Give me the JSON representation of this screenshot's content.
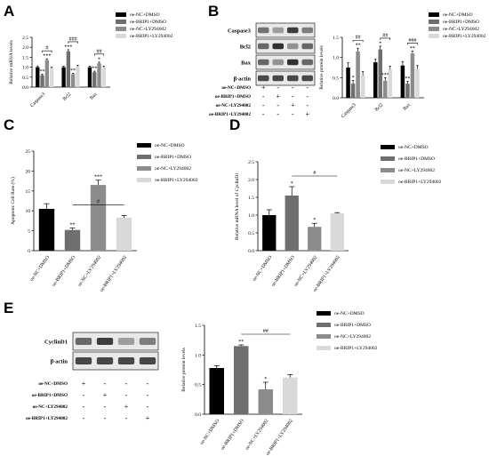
{
  "colors": {
    "oe-NC+DMSO": "#000000",
    "oe-BRIP1+DMSO": "#6e6e6e",
    "oe-NC+LY294002": "#8c8c8c",
    "oe-BRIP1+LY294002": "#d9d9d9"
  },
  "chart_data": [
    {
      "panel": "A",
      "type": "bar",
      "categories": [
        "Caspase3",
        "Bcl2",
        "Bax"
      ],
      "series": [
        {
          "name": "oe-NC+DMSO",
          "values": [
            1.0,
            1.0,
            1.0
          ],
          "errors": [
            0.06,
            0.05,
            0.05
          ]
        },
        {
          "name": "oe-BRIP1+DMSO",
          "values": [
            0.6,
            1.8,
            0.75
          ],
          "errors": [
            0.05,
            0.08,
            0.05
          ]
        },
        {
          "name": "oe-NC+LY294002",
          "values": [
            1.35,
            0.65,
            1.2
          ],
          "errors": [
            0.07,
            0.05,
            0.06
          ]
        },
        {
          "name": "oe-BRIP1+LY294002",
          "values": [
            0.95,
            1.05,
            1.0
          ],
          "errors": [
            0.05,
            0.05,
            0.05
          ]
        }
      ],
      "ylabel": "Relative mRNA levels",
      "ylim": [
        0,
        2.5
      ],
      "yticks": [
        "0.0",
        "0.5",
        "1.0",
        "1.5",
        "2.0",
        "2.5"
      ],
      "significance": [
        [
          "**",
          "***",
          "#"
        ],
        [
          "***",
          "**",
          "###"
        ],
        [
          "**",
          "*",
          "##"
        ]
      ],
      "legend_position": "top-right"
    },
    {
      "panel": "B",
      "type": "bar",
      "categories": [
        "Caspase3",
        "Bcl2",
        "Bax"
      ],
      "series": [
        {
          "name": "oe-NC+DMSO",
          "values": [
            0.75,
            0.88,
            0.8
          ],
          "errors": [
            0.12,
            0.08,
            0.1
          ]
        },
        {
          "name": "oe-BRIP1+DMSO",
          "values": [
            0.35,
            1.2,
            0.35
          ],
          "errors": [
            0.08,
            0.08,
            0.06
          ]
        },
        {
          "name": "oe-NC+LY294002",
          "values": [
            1.15,
            0.42,
            1.1
          ],
          "errors": [
            0.08,
            0.08,
            0.06
          ]
        },
        {
          "name": "oe-BRIP1+LY294002",
          "values": [
            0.55,
            0.7,
            0.72
          ],
          "errors": [
            0.1,
            0.08,
            0.08
          ]
        }
      ],
      "ylabel": "Relative protein levels",
      "ylim": [
        0,
        1.5
      ],
      "yticks": [
        "0.0",
        "0.5",
        "1.0",
        "1.5"
      ],
      "significance": [
        [
          "*",
          "**",
          "##"
        ],
        [
          "*",
          "***",
          "##"
        ],
        [
          "**",
          "**",
          "###"
        ]
      ],
      "legend_position": "top-right"
    },
    {
      "panel": "C",
      "type": "bar",
      "categories": [
        "oe-NC+DMSO",
        "oe-BRIP1+DMSO",
        "oe-NC+LY294002",
        "oe-BRIP1+LY294002"
      ],
      "values": [
        10.5,
        5.2,
        16.5,
        8.3
      ],
      "errors": [
        1.3,
        0.5,
        1.2,
        0.5
      ],
      "ylabel": "Apoptotic Cell Rate (%)",
      "ylim": [
        0,
        25
      ],
      "yticks": [
        "0",
        "5",
        "10",
        "15",
        "20",
        "25"
      ],
      "marks": [
        "",
        "**",
        "***",
        ""
      ],
      "bracket": {
        "from": 1,
        "to": 3,
        "label": "#"
      },
      "legend_position": "top-right"
    },
    {
      "panel": "D",
      "type": "bar",
      "categories": [
        "oe-NC+DMSO",
        "oe-BRIP1+DMSO",
        "oe-NC+LY294002",
        "oe-BRIP1+LY294002"
      ],
      "values": [
        1.0,
        1.55,
        0.67,
        1.05
      ],
      "errors": [
        0.15,
        0.25,
        0.1,
        0.02
      ],
      "ylabel": "Relative mRNA level of CyclinD1",
      "ylim": [
        0,
        2.5
      ],
      "yticks": [
        "0.0",
        "0.5",
        "1.0",
        "1.5",
        "2.0",
        "2.5"
      ],
      "marks": [
        "",
        "*",
        "*",
        ""
      ],
      "bracket": {
        "from": 1,
        "to": 3,
        "label": "#"
      },
      "legend_position": "top-right"
    },
    {
      "panel": "E",
      "type": "bar",
      "categories": [
        "oe-NC+DMSO",
        "oe-BRIP1+DMSO",
        "oe-NC+LY294002",
        "oe-BRIP1+LY294002"
      ],
      "values": [
        0.78,
        1.15,
        0.42,
        0.62
      ],
      "errors": [
        0.04,
        0.02,
        0.12,
        0.05
      ],
      "ylabel": "Relative protein levels",
      "ylim": [
        0,
        1.5
      ],
      "yticks": [
        "0.0",
        "0.5",
        "1.0",
        "1.5"
      ],
      "marks": [
        "",
        "**",
        "*",
        ""
      ],
      "bracket": {
        "from": 1,
        "to": 3,
        "label": "##"
      },
      "legend_position": "top-right"
    }
  ],
  "blot_b": {
    "bands": [
      "Caspase3",
      "Bcl2",
      "Bax",
      "β-actin"
    ],
    "treatments": [
      "oe-NC+DMSO",
      "oe-BRIP1+DMSO",
      "oe-NC+LY294002",
      "oe-BRIP1+LY294002"
    ],
    "plus": "+",
    "minus": "-"
  },
  "blot_e": {
    "bands": [
      "CyclinD1",
      "β-actin"
    ],
    "treatments": [
      "oe-NC+DMSO",
      "oe-BRIP1+DMSO",
      "oe-NC+LY294002",
      "oe-BRIP1+LY294002"
    ],
    "plus": "+",
    "minus": "-"
  }
}
